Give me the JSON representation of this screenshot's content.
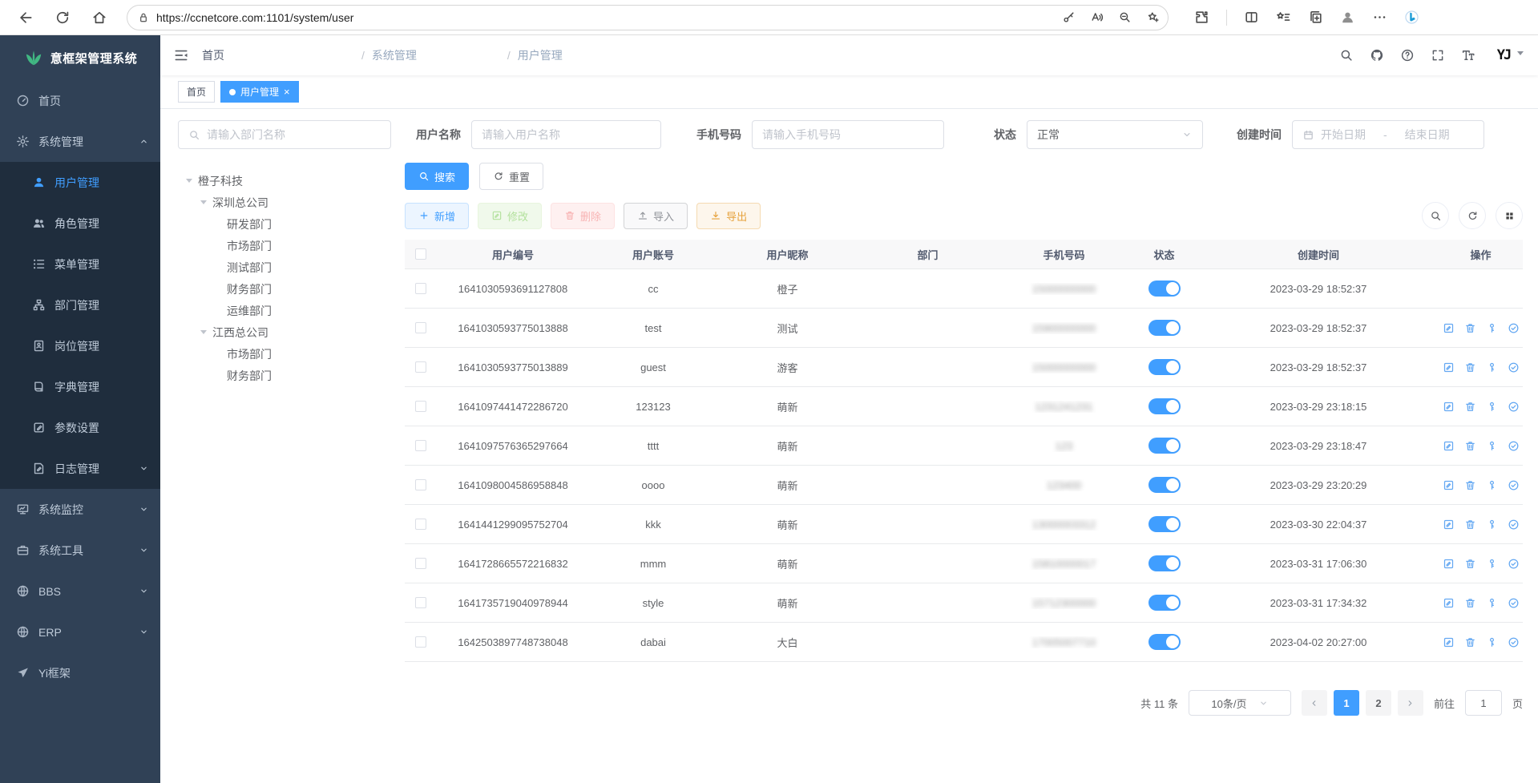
{
  "colors": {
    "accent": "#409eff",
    "sidebar_bg": "#304156",
    "submenu_bg": "#1f2d3d",
    "logo_green": "#41b883",
    "toggle_on": "#409eff"
  },
  "browser": {
    "url": "https://ccnetcore.com:1101/system/user",
    "nav_icons": [
      "back",
      "reload",
      "home"
    ],
    "pill_icons": [
      "lock",
      "key",
      "read-aloud",
      "zoom-out",
      "favorite-add"
    ],
    "right_icons": [
      "extensions",
      "split-screen",
      "favorites-bar",
      "collections",
      "profile",
      "more",
      "bing"
    ]
  },
  "sidebar": {
    "title": "意框架管理系统",
    "logo_icon": "leaf",
    "menu": [
      {
        "label": "首页",
        "icon": "gauge",
        "level": 1
      },
      {
        "label": "系统管理",
        "icon": "gear",
        "level": 1,
        "chevron": "up"
      },
      {
        "label": "用户管理",
        "icon": "user",
        "level": 2,
        "active": true
      },
      {
        "label": "角色管理",
        "icon": "users",
        "level": 2
      },
      {
        "label": "菜单管理",
        "icon": "menu-tree",
        "level": 2
      },
      {
        "label": "部门管理",
        "icon": "org",
        "level": 2
      },
      {
        "label": "岗位管理",
        "icon": "badge",
        "level": 2
      },
      {
        "label": "字典管理",
        "icon": "book",
        "level": 2
      },
      {
        "label": "参数设置",
        "icon": "edit-doc",
        "level": 2
      },
      {
        "label": "日志管理",
        "icon": "log",
        "level": 2,
        "chevron": "down"
      },
      {
        "label": "系统监控",
        "icon": "monitor",
        "level": 1,
        "chevron": "down"
      },
      {
        "label": "系统工具",
        "icon": "toolbox",
        "level": 1,
        "chevron": "down"
      },
      {
        "label": "BBS",
        "icon": "globe",
        "level": 1,
        "chevron": "down"
      },
      {
        "label": "ERP",
        "icon": "globe",
        "level": 1,
        "chevron": "down"
      },
      {
        "label": "Yi框架",
        "icon": "plane",
        "level": 1
      }
    ]
  },
  "navbar": {
    "breadcrumb": [
      "首页",
      "系统管理",
      "用户管理"
    ],
    "separator": "/",
    "icons": [
      "search",
      "github",
      "question",
      "fullscreen",
      "font-size"
    ],
    "avatar_text": "YJ"
  },
  "tabs": [
    {
      "label": "首页",
      "active": false
    },
    {
      "label": "用户管理",
      "active": true,
      "closable": true
    }
  ],
  "filters": {
    "dept_search_placeholder": "请输入部门名称",
    "fields": [
      {
        "label": "用户名称",
        "placeholder": "请输入用户名称"
      },
      {
        "label": "手机号码",
        "placeholder": "请输入手机号码"
      },
      {
        "label": "状态",
        "value": "正常"
      },
      {
        "label": "创建时间",
        "start": "开始日期",
        "sep": "-",
        "end": "结束日期"
      }
    ],
    "search_label": "搜索",
    "reset_label": "重置"
  },
  "tree": [
    {
      "label": "橙子科技",
      "level": 1,
      "expandable": true
    },
    {
      "label": "深圳总公司",
      "level": 2,
      "expandable": true
    },
    {
      "label": "研发部门",
      "level": 3
    },
    {
      "label": "市场部门",
      "level": 3
    },
    {
      "label": "测试部门",
      "level": 3
    },
    {
      "label": "财务部门",
      "level": 3
    },
    {
      "label": "运维部门",
      "level": 3
    },
    {
      "label": "江西总公司",
      "level": 2,
      "expandable": true
    },
    {
      "label": "市场部门",
      "level": 3
    },
    {
      "label": "财务部门",
      "level": 3
    }
  ],
  "toolbar": {
    "buttons": [
      {
        "label": "新增",
        "icon": "plus",
        "style": "bp-primary"
      },
      {
        "label": "修改",
        "icon": "edit",
        "style": "bp-success"
      },
      {
        "label": "删除",
        "icon": "trash",
        "style": "bp-danger"
      },
      {
        "label": "导入",
        "icon": "upload",
        "style": "bp-info"
      },
      {
        "label": "导出",
        "icon": "download",
        "style": "bp-warning"
      }
    ],
    "right_icons": [
      "search",
      "refresh",
      "grid"
    ]
  },
  "table": {
    "columns": [
      "",
      "用户编号",
      "用户账号",
      "用户昵称",
      "部门",
      "手机号码",
      "状态",
      "创建时间",
      "操作"
    ],
    "phones_blurred": true,
    "action_icons": [
      "edit",
      "trash",
      "key-vertical",
      "check-circle"
    ],
    "rows": [
      {
        "id": "1641030593691127808",
        "account": "cc",
        "nickname": "橙子",
        "dept": "",
        "phone": "15000000000",
        "status": true,
        "created": "2023-03-29 18:52:37",
        "actions": false
      },
      {
        "id": "1641030593775013888",
        "account": "test",
        "nickname": "测试",
        "dept": "",
        "phone": "15900000000",
        "status": true,
        "created": "2023-03-29 18:52:37",
        "actions": true
      },
      {
        "id": "1641030593775013889",
        "account": "guest",
        "nickname": "游客",
        "dept": "",
        "phone": "15000000000",
        "status": true,
        "created": "2023-03-29 18:52:37",
        "actions": true
      },
      {
        "id": "1641097441472286720",
        "account": "123123",
        "nickname": "萌新",
        "dept": "",
        "phone": "1231241231",
        "status": true,
        "created": "2023-03-29 23:18:15",
        "actions": true
      },
      {
        "id": "1641097576365297664",
        "account": "tttt",
        "nickname": "萌新",
        "dept": "",
        "phone": "123",
        "status": true,
        "created": "2023-03-29 23:18:47",
        "actions": true
      },
      {
        "id": "1641098004586958848",
        "account": "oooo",
        "nickname": "萌新",
        "dept": "",
        "phone": "123400",
        "status": true,
        "created": "2023-03-29 23:20:29",
        "actions": true
      },
      {
        "id": "1641441299095752704",
        "account": "kkk",
        "nickname": "萌新",
        "dept": "",
        "phone": "13000003312",
        "status": true,
        "created": "2023-03-30 22:04:37",
        "actions": true
      },
      {
        "id": "1641728665572216832",
        "account": "mmm",
        "nickname": "萌新",
        "dept": "",
        "phone": "15810000017",
        "status": true,
        "created": "2023-03-31 17:06:30",
        "actions": true
      },
      {
        "id": "1641735719040978944",
        "account": "style",
        "nickname": "萌新",
        "dept": "",
        "phone": "15712300000",
        "status": true,
        "created": "2023-03-31 17:34:32",
        "actions": true
      },
      {
        "id": "1642503897748738048",
        "account": "dabai",
        "nickname": "大白",
        "dept": "",
        "phone": "17005007710",
        "status": true,
        "created": "2023-04-02 20:27:00",
        "actions": true
      }
    ]
  },
  "pagination": {
    "total_text": "共 11 条",
    "page_size": "10条/页",
    "pages": [
      "1",
      "2"
    ],
    "active_page": "1",
    "goto_label": "前往",
    "goto_value": "1",
    "page_suffix": "页"
  }
}
